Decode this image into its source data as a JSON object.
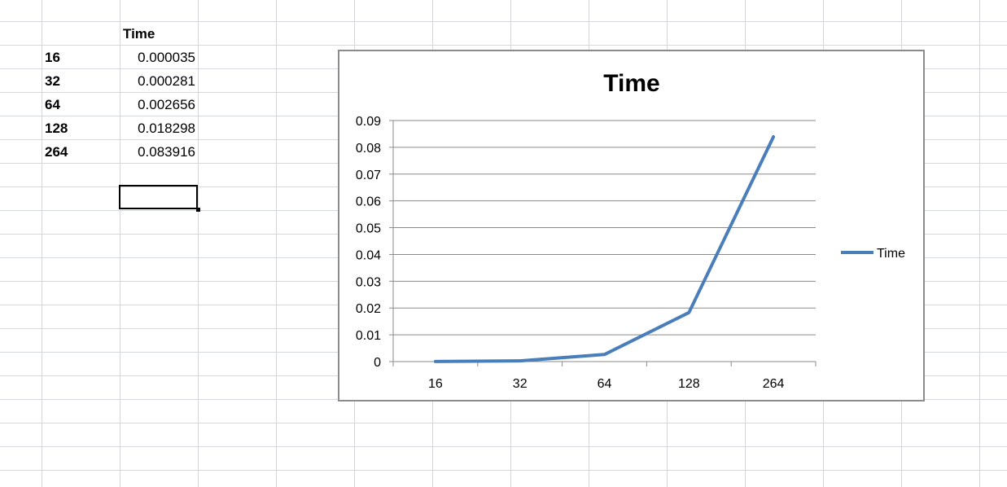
{
  "sheet": {
    "header": "Time",
    "rows": [
      {
        "n": "16",
        "t": "0.000035"
      },
      {
        "n": "32",
        "t": "0.000281"
      },
      {
        "n": "64",
        "t": "0.002656"
      },
      {
        "n": "128",
        "t": "0.018298"
      },
      {
        "n": "264",
        "t": "0.083916"
      }
    ]
  },
  "chart_data": {
    "type": "line",
    "title": "Time",
    "categories": [
      "16",
      "32",
      "64",
      "128",
      "264"
    ],
    "series": [
      {
        "name": "Time",
        "values": [
          3.5e-05,
          0.000281,
          0.002656,
          0.018298,
          0.083916
        ],
        "color": "#4a7ebb"
      }
    ],
    "ylim": [
      0,
      0.09
    ],
    "yticks": [
      "0",
      "0.01",
      "0.02",
      "0.03",
      "0.04",
      "0.05",
      "0.06",
      "0.07",
      "0.08",
      "0.09"
    ],
    "grid": true,
    "legend": "right"
  }
}
